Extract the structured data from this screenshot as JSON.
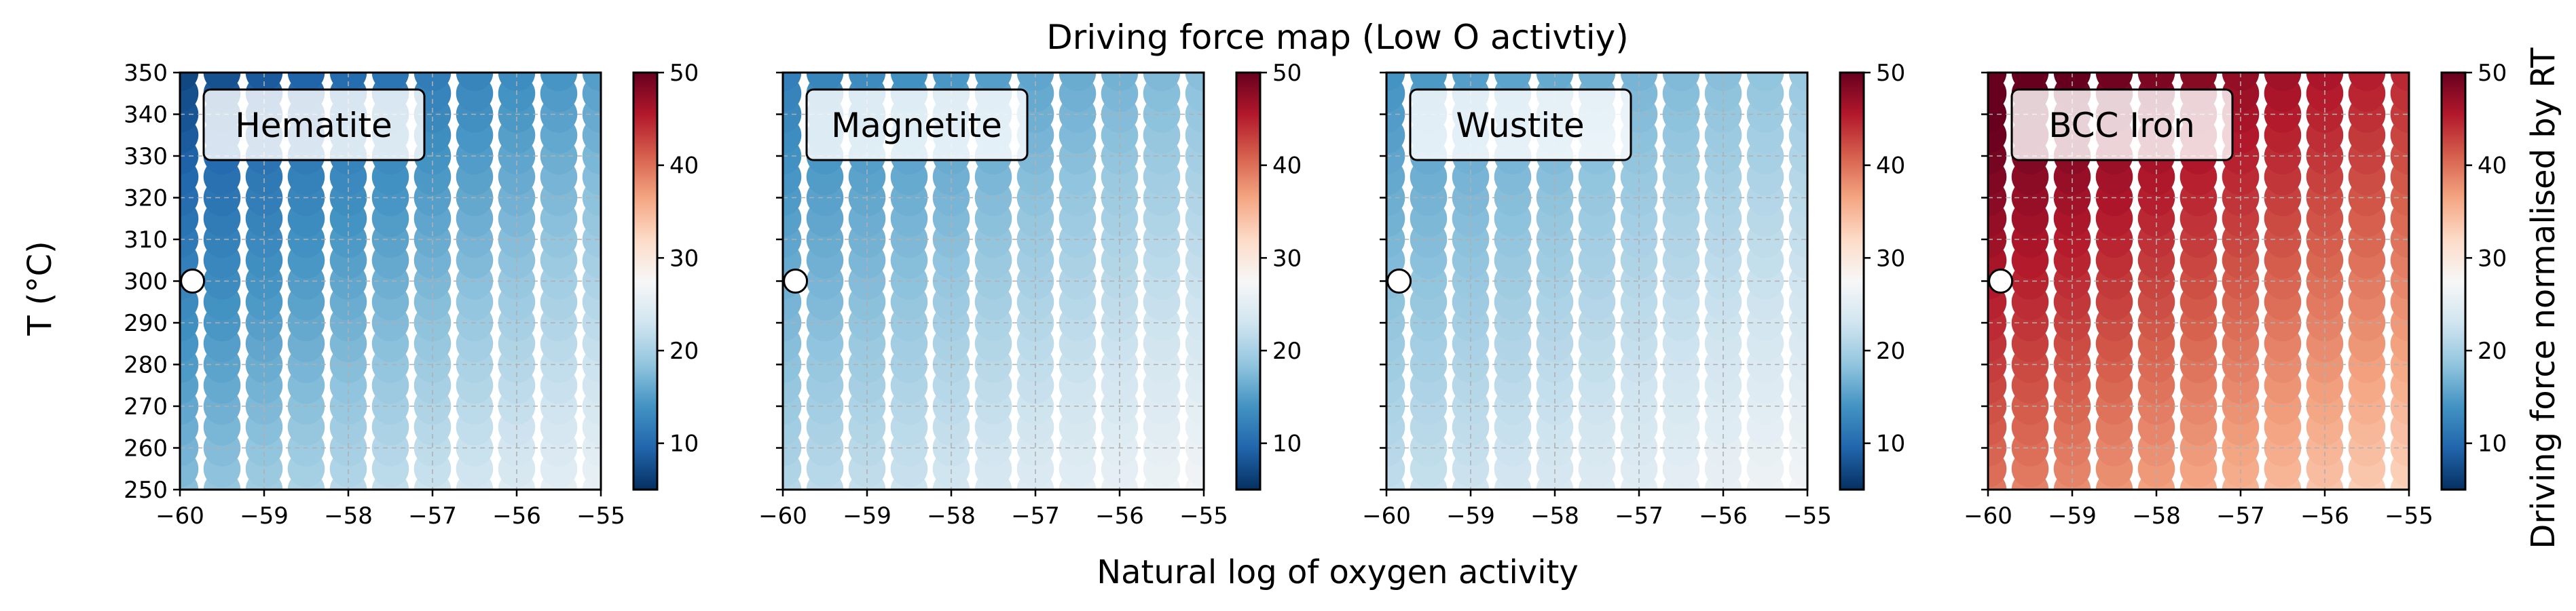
{
  "figure": {
    "title": "Driving force map (Low O activtiy)",
    "xlabel": "Natural log of oxygen activity",
    "ylabel": "T ($^\\circ$C)",
    "ylabel_display": "T (°C)",
    "colorbar_label": "Driving force normalised by RT"
  },
  "chart_data": [
    {
      "type": "scatter",
      "panel_label": "Hematite",
      "x_range": [
        -60,
        -55
      ],
      "y_range": [
        250,
        350
      ],
      "xticks": [
        -60,
        -59,
        -58,
        -57,
        -56,
        -55
      ],
      "xtick_labels": [
        "−60",
        "−59",
        "−58",
        "−57",
        "−56",
        "−55"
      ],
      "yticks": [
        250,
        260,
        270,
        280,
        290,
        300,
        310,
        320,
        330,
        340,
        350
      ],
      "x_grid": [
        -60,
        -59.5,
        -59,
        -58.5,
        -58,
        -57.5,
        -57,
        -56.5,
        -56,
        -55.5,
        -55
      ],
      "y_grid": [
        250,
        255,
        260,
        265,
        270,
        275,
        280,
        285,
        290,
        295,
        300,
        305,
        310,
        315,
        320,
        325,
        330,
        335,
        340,
        345,
        350
      ],
      "value_model": {
        "base": 16.5,
        "dT_per_degC": -0.11,
        "dlnaO_per_unit": 1.6,
        "ref_T": 300,
        "ref_lnaO": -57.5
      },
      "marker": {
        "x": -59.85,
        "y": 300
      },
      "cmap": "RdBu_r",
      "clim": [
        5,
        50
      ],
      "colorbar_ticks": [
        10,
        20,
        30,
        40,
        50
      ],
      "grid": true,
      "legend": "none"
    },
    {
      "type": "scatter",
      "panel_label": "Magnetite",
      "x_range": [
        -60,
        -55
      ],
      "y_range": [
        250,
        350
      ],
      "xticks": [
        -60,
        -59,
        -58,
        -57,
        -56,
        -55
      ],
      "xtick_labels": [
        "−60",
        "−59",
        "−58",
        "−57",
        "−56",
        "−55"
      ],
      "yticks": [
        250,
        260,
        270,
        280,
        290,
        300,
        310,
        320,
        330,
        340,
        350
      ],
      "x_grid": [
        -60,
        -59.5,
        -59,
        -58.5,
        -58,
        -57.5,
        -57,
        -56.5,
        -56,
        -55.5,
        -55
      ],
      "y_grid": [
        250,
        255,
        260,
        265,
        270,
        275,
        280,
        285,
        290,
        295,
        300,
        305,
        310,
        315,
        320,
        325,
        330,
        335,
        340,
        345,
        350
      ],
      "value_model": {
        "base": 19.5,
        "dT_per_degC": -0.09,
        "dlnaO_per_unit": 1.2,
        "ref_T": 300,
        "ref_lnaO": -57.5
      },
      "marker": {
        "x": -59.85,
        "y": 300
      },
      "cmap": "RdBu_r",
      "clim": [
        5,
        50
      ],
      "colorbar_ticks": [
        10,
        20,
        30,
        40,
        50
      ],
      "grid": true,
      "legend": "none"
    },
    {
      "type": "scatter",
      "panel_label": "Wustite",
      "x_range": [
        -60,
        -55
      ],
      "y_range": [
        250,
        350
      ],
      "xticks": [
        -60,
        -59,
        -58,
        -57,
        -56,
        -55
      ],
      "xtick_labels": [
        "−60",
        "−59",
        "−58",
        "−57",
        "−56",
        "−55"
      ],
      "yticks": [
        250,
        260,
        270,
        280,
        290,
        300,
        310,
        320,
        330,
        340,
        350
      ],
      "x_grid": [
        -60,
        -59.5,
        -59,
        -58.5,
        -58,
        -57.5,
        -57,
        -56.5,
        -56,
        -55.5,
        -55
      ],
      "y_grid": [
        250,
        255,
        260,
        265,
        270,
        275,
        280,
        285,
        290,
        295,
        300,
        305,
        310,
        315,
        320,
        325,
        330,
        335,
        340,
        345,
        350
      ],
      "value_model": {
        "base": 20.5,
        "dT_per_degC": -0.08,
        "dlnaO_per_unit": 1.0,
        "ref_T": 300,
        "ref_lnaO": -57.5
      },
      "marker": {
        "x": -59.85,
        "y": 300
      },
      "cmap": "RdBu_r",
      "clim": [
        5,
        50
      ],
      "colorbar_ticks": [
        10,
        20,
        30,
        40,
        50
      ],
      "grid": true,
      "legend": "none"
    },
    {
      "type": "scatter",
      "panel_label": "BCC Iron",
      "x_range": [
        -60,
        -55
      ],
      "y_range": [
        250,
        350
      ],
      "xticks": [
        -60,
        -59,
        -58,
        -57,
        -56,
        -55
      ],
      "xtick_labels": [
        "−60",
        "−59",
        "−58",
        "−57",
        "−56",
        "−55"
      ],
      "yticks": [
        250,
        260,
        270,
        280,
        290,
        300,
        310,
        320,
        330,
        340,
        350
      ],
      "x_grid": [
        -60,
        -59.5,
        -59,
        -58.5,
        -58,
        -57.5,
        -57,
        -56.5,
        -56,
        -55.5,
        -55
      ],
      "y_grid": [
        250,
        255,
        260,
        265,
        270,
        275,
        280,
        285,
        290,
        295,
        300,
        305,
        310,
        315,
        320,
        325,
        330,
        335,
        340,
        345,
        350
      ],
      "value_model": {
        "base": 42,
        "dT_per_degC": 0.12,
        "dlnaO_per_unit": -1.4,
        "ref_T": 300,
        "ref_lnaO": -57.5
      },
      "marker": {
        "x": -59.85,
        "y": 300
      },
      "cmap": "RdBu_r",
      "clim": [
        5,
        50
      ],
      "colorbar_ticks": [
        10,
        20,
        30,
        40,
        50
      ],
      "grid": true,
      "legend": "none"
    }
  ],
  "colors": {
    "marker_fill": "#ffffff",
    "marker_edge": "#000000",
    "grid": "#b0b0b0",
    "cmap_stops": [
      "#053061",
      "#2166ac",
      "#4393c3",
      "#92c5de",
      "#d1e5f0",
      "#f7f7f7",
      "#fddbc7",
      "#f4a582",
      "#d6604d",
      "#b2182b",
      "#67001f"
    ]
  }
}
